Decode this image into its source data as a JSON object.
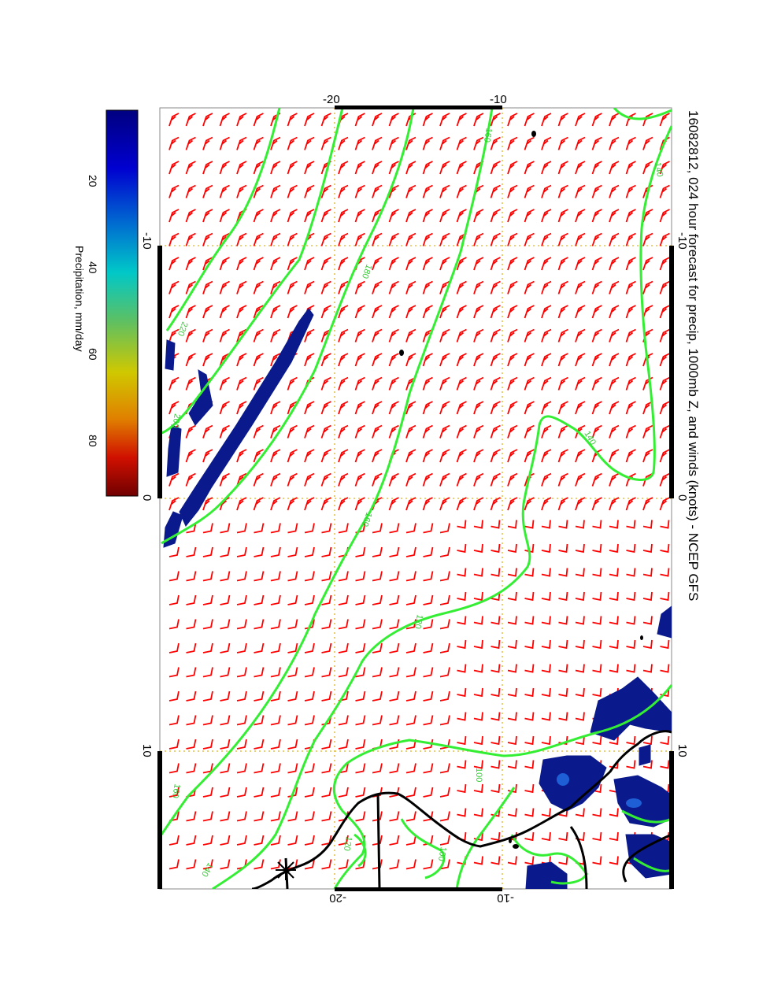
{
  "title": "16082812, 024 hour forecast for precip, 1000mb Z, and winds (knots) - NCEP GFS",
  "map": {
    "top_ticks": [
      "-20",
      "-10"
    ],
    "bottom_ticks": [
      "-20",
      "-10"
    ],
    "left_ticks": [
      "-10",
      "0",
      "10"
    ],
    "right_ticks": [
      "-10",
      "0",
      "10"
    ],
    "contour_labels": [
      "220",
      "200",
      "180",
      "160",
      "140",
      "160",
      "140",
      "120",
      "100",
      "120",
      "140",
      "160",
      "100"
    ]
  },
  "colorbar": {
    "label": "Precipitation, mm/day",
    "ticks": [
      "20",
      "40",
      "60",
      "80"
    ]
  },
  "colors": {
    "wind_barbs": "#ff0000",
    "contours": "#33ee33",
    "coastline": "#000000",
    "precip": "#0a1a8c",
    "grid": "#e0b020"
  }
}
